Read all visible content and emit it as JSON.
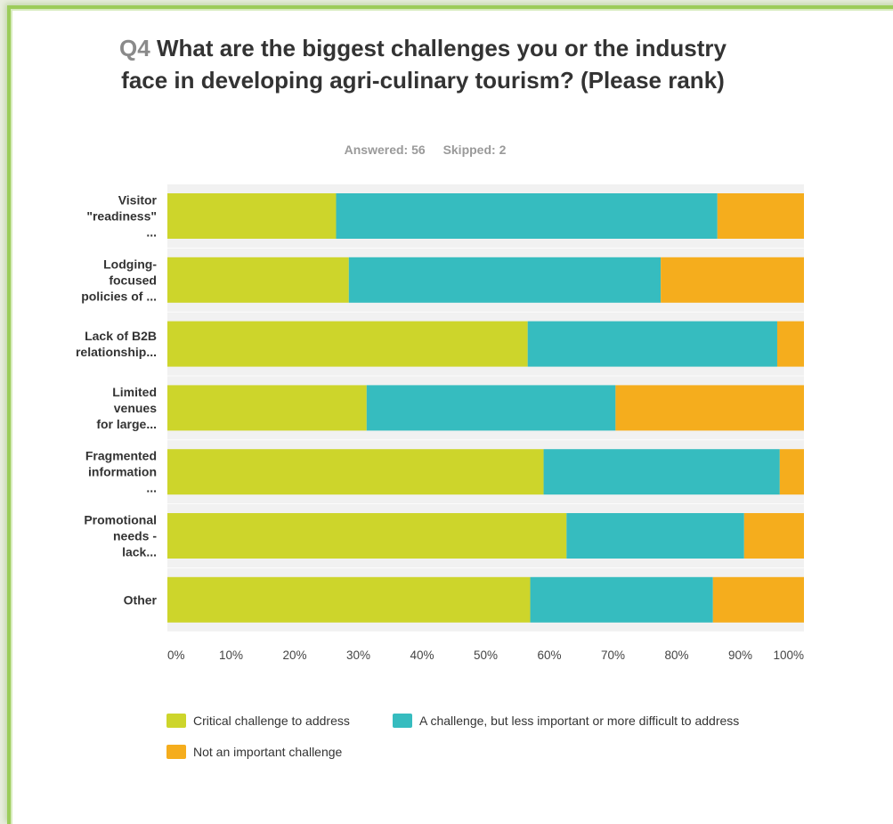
{
  "question": {
    "number": "Q4",
    "text": "What are the biggest challenges you or the industry face in developing agri-culinary tourism? (Please rank)"
  },
  "stats": {
    "answered": "Answered: 56",
    "skipped": "Skipped: 2"
  },
  "chart_data": {
    "type": "bar",
    "orientation": "horizontal",
    "stacked": "percent",
    "categories": [
      [
        "Visitor",
        "\"readiness\"",
        "..."
      ],
      [
        "Lodging-",
        "focused",
        "policies of ..."
      ],
      [
        "Lack of B2B",
        "relationship..."
      ],
      [
        "Limited",
        "venues",
        "for large..."
      ],
      [
        "Fragmented",
        "information",
        "..."
      ],
      [
        "Promotional",
        "needs -",
        "lack..."
      ],
      [
        "Other"
      ]
    ],
    "series": [
      {
        "name": "Critical challenge to address",
        "color": "#cdd52b",
        "values": [
          26.5,
          28.5,
          56.6,
          31.3,
          59.1,
          62.7,
          57.0
        ]
      },
      {
        "name": "A challenge, but less important or more difficult to address",
        "color": "#36bcbf",
        "values": [
          59.9,
          49.0,
          39.2,
          39.1,
          37.1,
          27.9,
          28.7
        ]
      },
      {
        "name": "Not an important challenge",
        "color": "#f5ad1d",
        "values": [
          13.6,
          22.5,
          4.2,
          29.6,
          3.8,
          9.4,
          14.3
        ]
      }
    ],
    "x_ticks": [
      "0%",
      "10%",
      "20%",
      "30%",
      "40%",
      "50%",
      "60%",
      "70%",
      "80%",
      "90%",
      "100%"
    ],
    "xlim": [
      0,
      100
    ],
    "grid": false,
    "legend_position": "bottom"
  }
}
